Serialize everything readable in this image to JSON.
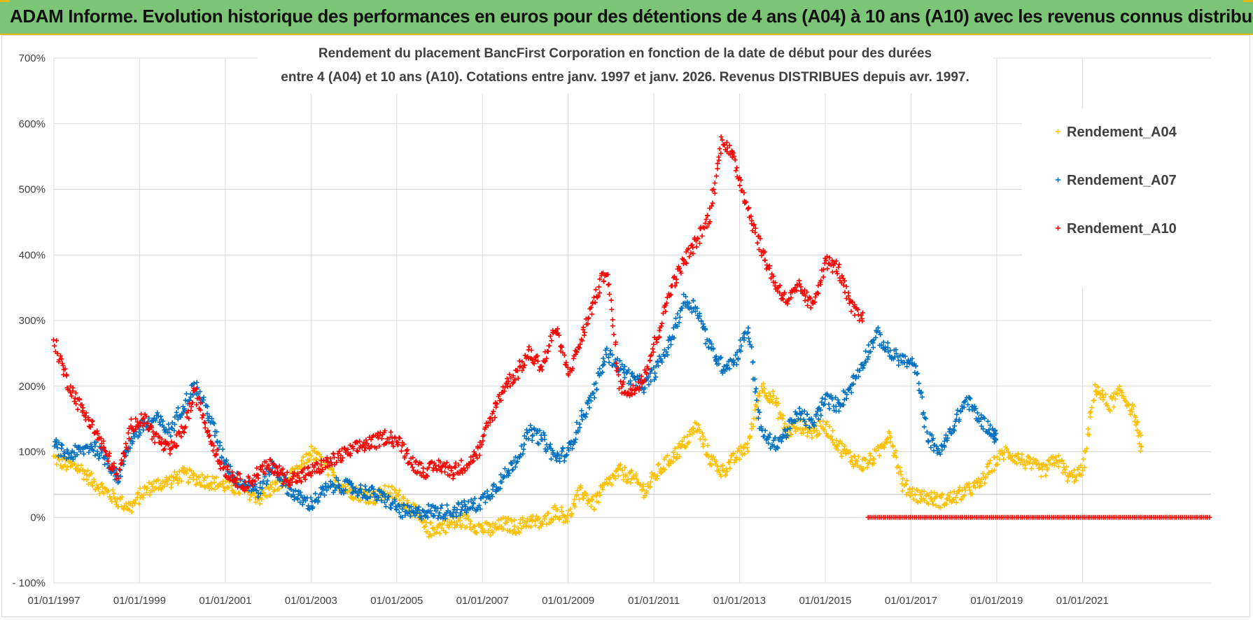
{
  "banner": {
    "title": "ADAM Informe. Evolution historique des performances en euros pour des détentions de 4 ans (A04) à 10 ans (A10) avec les revenus connus distribués"
  },
  "colors": {
    "banner_bg": "#7cc576",
    "a04": "#ffc000",
    "a07": "#0070c0",
    "a10": "#ff0000",
    "grid": "#d9d9d9"
  },
  "chart_data": {
    "type": "scatter",
    "title_lines": [
      "Rendement du placement BancFirst Corporation en fonction de la date de début pour des durées",
      "entre 4 (A04) et 10 ans (A10).  Cotations entre janv. 1997 et janv. 2026. Revenus DISTRIBUES depuis avr. 1997."
    ],
    "ylim": [
      -100,
      700
    ],
    "yticks": [
      -100,
      0,
      100,
      200,
      300,
      400,
      500,
      600,
      700
    ],
    "ytick_labels": [
      "- 100%",
      "0%",
      "100%",
      "200%",
      "300%",
      "400%",
      "500%",
      "600%",
      "700%"
    ],
    "xlim": [
      1997.0,
      2024.0
    ],
    "xticks": [
      1997,
      1999,
      2001,
      2003,
      2005,
      2007,
      2009,
      2011,
      2013,
      2015,
      2017,
      2019,
      2021
    ],
    "xtick_labels": [
      "01/01/1997",
      "01/01/1999",
      "01/01/2001",
      "01/01/2003",
      "01/01/2005",
      "01/01/2007",
      "01/01/2009",
      "01/01/2011",
      "01/01/2013",
      "01/01/2015",
      "01/01/2017",
      "01/01/2019",
      "01/01/2021"
    ],
    "legend_position": "top-right",
    "series": [
      {
        "name": "Rendement_A04",
        "color": "#ffc000",
        "x": [
          1997.0,
          1997.3,
          1997.6,
          1997.9,
          1998.2,
          1998.5,
          1998.8,
          1999.1,
          1999.4,
          1999.7,
          2000.0,
          2000.3,
          2000.6,
          2000.9,
          2001.2,
          2001.5,
          2001.8,
          2002.1,
          2002.4,
          2002.7,
          2003.0,
          2003.3,
          2003.6,
          2003.9,
          2004.2,
          2004.5,
          2004.8,
          2005.1,
          2005.4,
          2005.7,
          2006.0,
          2006.3,
          2006.6,
          2006.9,
          2007.2,
          2007.5,
          2007.8,
          2008.1,
          2008.4,
          2008.7,
          2009.0,
          2009.3,
          2009.6,
          2009.9,
          2010.2,
          2010.5,
          2010.8,
          2011.1,
          2011.4,
          2011.7,
          2012.0,
          2012.3,
          2012.6,
          2012.9,
          2013.2,
          2013.5,
          2013.8,
          2014.1,
          2014.4,
          2014.7,
          2015.0,
          2015.3,
          2015.6,
          2015.9,
          2016.2,
          2016.5,
          2016.8,
          2017.1,
          2017.4,
          2017.7,
          2018.0,
          2018.3,
          2018.6,
          2018.9,
          2019.2,
          2019.5,
          2019.8,
          2020.1,
          2020.4,
          2020.7,
          2021.0,
          2021.3,
          2021.6,
          2021.9,
          2022.2,
          2022.4
        ],
        "y": [
          90,
          80,
          75,
          55,
          40,
          25,
          15,
          40,
          50,
          55,
          65,
          60,
          55,
          50,
          45,
          40,
          30,
          45,
          55,
          70,
          100,
          80,
          55,
          40,
          35,
          30,
          40,
          30,
          10,
          -20,
          -15,
          -10,
          -5,
          -15,
          -20,
          -10,
          -15,
          -5,
          -10,
          10,
          0,
          40,
          20,
          50,
          70,
          60,
          40,
          70,
          90,
          110,
          140,
          90,
          70,
          90,
          110,
          200,
          180,
          130,
          140,
          130,
          140,
          110,
          90,
          80,
          95,
          130,
          50,
          35,
          30,
          25,
          30,
          40,
          50,
          80,
          100,
          90,
          80,
          70,
          90,
          60,
          70,
          200,
          170,
          190,
          160,
          100
        ]
      },
      {
        "name": "Rendement_A07",
        "color": "#0070c0",
        "x": [
          1997.0,
          1997.3,
          1997.6,
          1997.9,
          1998.2,
          1998.5,
          1998.8,
          1999.1,
          1999.4,
          1999.7,
          2000.0,
          2000.3,
          2000.6,
          2000.9,
          2001.2,
          2001.5,
          2001.8,
          2002.1,
          2002.4,
          2002.7,
          2003.0,
          2003.3,
          2003.6,
          2003.9,
          2004.2,
          2004.5,
          2004.8,
          2005.1,
          2005.4,
          2005.7,
          2006.0,
          2006.3,
          2006.6,
          2006.9,
          2007.2,
          2007.5,
          2007.8,
          2008.1,
          2008.4,
          2008.7,
          2009.0,
          2009.3,
          2009.6,
          2009.9,
          2010.2,
          2010.5,
          2010.8,
          2011.1,
          2011.4,
          2011.7,
          2012.0,
          2012.3,
          2012.6,
          2012.9,
          2013.2,
          2013.5,
          2013.8,
          2014.1,
          2014.4,
          2014.7,
          2015.0,
          2015.3,
          2015.6,
          2015.9,
          2016.2,
          2016.5,
          2016.8,
          2017.1,
          2017.4,
          2017.7,
          2018.0,
          2018.3,
          2018.6,
          2018.9,
          2019.0
        ],
        "y": [
          110,
          95,
          100,
          110,
          90,
          60,
          120,
          140,
          150,
          130,
          170,
          200,
          160,
          100,
          60,
          50,
          40,
          80,
          50,
          30,
          20,
          40,
          50,
          45,
          40,
          35,
          25,
          10,
          5,
          10,
          8,
          10,
          15,
          20,
          40,
          60,
          90,
          130,
          120,
          90,
          100,
          150,
          190,
          250,
          230,
          210,
          200,
          230,
          270,
          330,
          320,
          260,
          230,
          240,
          290,
          130,
          110,
          130,
          160,
          140,
          180,
          170,
          200,
          240,
          280,
          250,
          240,
          230,
          120,
          100,
          140,
          180,
          150,
          130,
          120
        ]
      },
      {
        "name": "Rendement_A10",
        "color": "#ff0000",
        "x": [
          1997.0,
          1997.3,
          1997.6,
          1997.9,
          1998.2,
          1998.5,
          1998.8,
          1999.1,
          1999.4,
          1999.7,
          2000.0,
          2000.3,
          2000.6,
          2000.9,
          2001.2,
          2001.5,
          2001.8,
          2002.1,
          2002.4,
          2002.7,
          2003.0,
          2003.3,
          2003.6,
          2003.9,
          2004.2,
          2004.5,
          2004.8,
          2005.1,
          2005.4,
          2005.7,
          2006.0,
          2006.3,
          2006.6,
          2006.9,
          2007.2,
          2007.5,
          2007.8,
          2008.1,
          2008.4,
          2008.7,
          2009.0,
          2009.3,
          2009.6,
          2009.9,
          2010.2,
          2010.5,
          2010.8,
          2011.1,
          2011.4,
          2011.7,
          2012.0,
          2012.3,
          2012.6,
          2012.9,
          2013.2,
          2013.5,
          2013.8,
          2014.1,
          2014.4,
          2014.7,
          2015.0,
          2015.3,
          2015.6,
          2015.9
        ],
        "y": [
          270,
          210,
          170,
          140,
          100,
          60,
          140,
          150,
          120,
          100,
          130,
          190,
          130,
          80,
          60,
          50,
          70,
          80,
          60,
          60,
          70,
          80,
          90,
          100,
          110,
          115,
          125,
          110,
          80,
          70,
          80,
          70,
          80,
          100,
          150,
          200,
          220,
          250,
          230,
          290,
          220,
          270,
          330,
          380,
          200,
          190,
          220,
          280,
          350,
          390,
          420,
          460,
          580,
          540,
          470,
          410,
          360,
          330,
          350,
          320,
          390,
          380,
          320,
          300
        ]
      }
    ],
    "a10_zero_segment": {
      "x_start": 2016.0,
      "x_end": 2024.0,
      "y": 0
    }
  }
}
